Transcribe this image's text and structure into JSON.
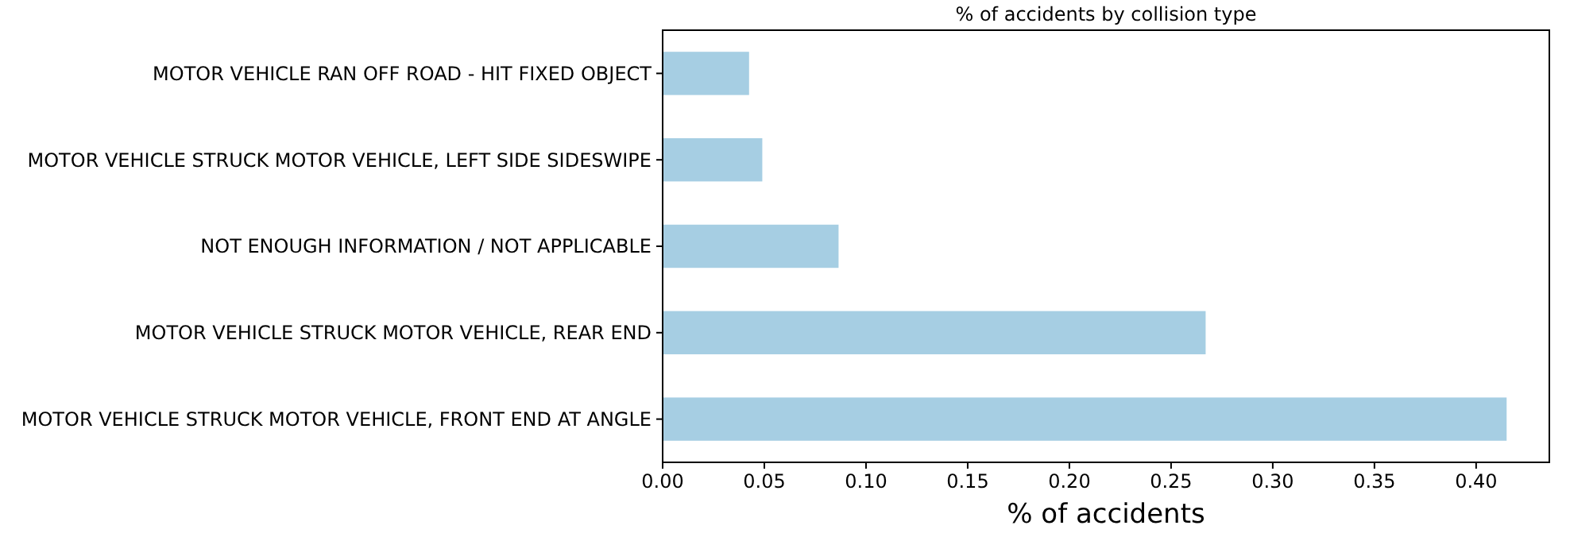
{
  "chart_data": {
    "type": "bar",
    "orientation": "horizontal",
    "title": "% of accidents by collision type",
    "xlabel": "% of accidents",
    "categories": [
      "MOTOR VEHICLE RAN OFF ROAD - HIT FIXED OBJECT",
      "MOTOR VEHICLE STRUCK MOTOR VEHICLE, LEFT SIDE SIDESWIPE",
      "NOT ENOUGH INFORMATION / NOT APPLICABLE",
      "MOTOR VEHICLE STRUCK MOTOR VEHICLE, REAR END",
      "MOTOR VEHICLE STRUCK MOTOR VEHICLE, FRONT END AT ANGLE"
    ],
    "values": [
      0.0425,
      0.049,
      0.0865,
      0.267,
      0.415
    ],
    "color": "#a6cee3",
    "xlim": [
      0,
      0.436
    ],
    "xticks": [
      {
        "value": 0,
        "label": "0.00"
      },
      {
        "value": 0.05,
        "label": "0.05"
      },
      {
        "value": 0.1,
        "label": "0.10"
      },
      {
        "value": 0.15,
        "label": "0.15"
      },
      {
        "value": 0.2,
        "label": "0.20"
      },
      {
        "value": 0.25,
        "label": "0.25"
      },
      {
        "value": 0.3,
        "label": "0.30"
      },
      {
        "value": 0.35,
        "label": "0.35"
      },
      {
        "value": 0.4,
        "label": "0.40"
      }
    ],
    "grid": false
  }
}
